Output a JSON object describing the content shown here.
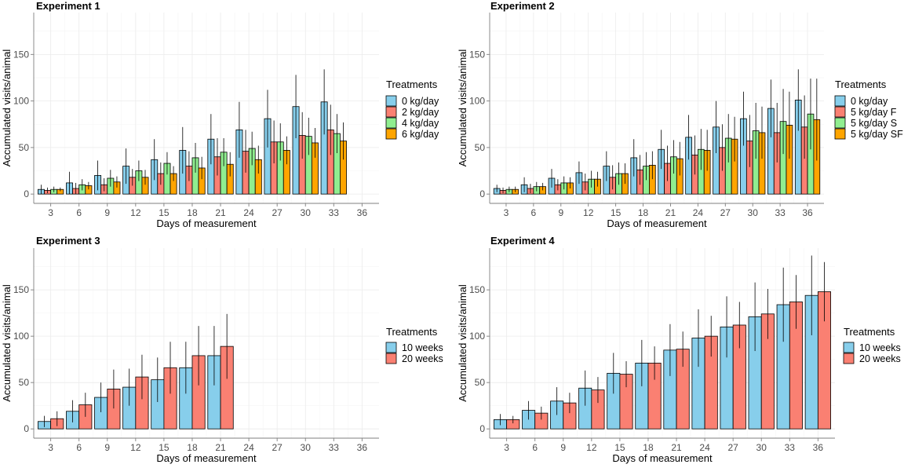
{
  "colors": {
    "0 kg/day": "#87CEEB",
    "2 kg/day": "#FA8072",
    "4 kg/day": "#90EE90",
    "6 kg/day": "#FFA500",
    "5 kg/day F": "#FA8072",
    "5 kg/day S": "#90EE90",
    "5 kg/day SF": "#FFA500",
    "10 weeks": "#87CEEB",
    "20 weeks": "#FA8072"
  },
  "chart_data": [
    {
      "type": "bar",
      "title": "Experiment 1",
      "xlabel": "Days of measurement",
      "ylabel": "Accumulated visits/animal",
      "ylim": [
        -10,
        195
      ],
      "yticks": [
        0,
        50,
        100,
        150
      ],
      "categories": [
        "3",
        "6",
        "9",
        "12",
        "15",
        "18",
        "21",
        "24",
        "27",
        "30",
        "33",
        "36"
      ],
      "legend_title": "Treatments",
      "series": [
        {
          "name": "0 kg/day",
          "values": [
            5,
            12,
            20,
            30,
            37,
            47,
            59,
            69,
            81,
            94,
            99,
            null
          ],
          "errors": [
            5,
            12,
            16,
            19,
            22,
            25,
            27,
            30,
            31,
            34,
            35,
            null
          ]
        },
        {
          "name": "2 kg/day",
          "values": [
            4,
            6,
            10,
            18,
            22,
            30,
            40,
            46,
            56,
            63,
            69,
            null
          ],
          "errors": [
            3,
            6,
            7,
            9,
            12,
            16,
            20,
            23,
            23,
            25,
            27,
            null
          ]
        },
        {
          "name": "4 kg/day",
          "values": [
            5,
            10,
            17,
            25,
            33,
            39,
            45,
            49,
            56,
            62,
            65,
            null
          ],
          "errors": [
            3,
            6,
            9,
            11,
            12,
            16,
            15,
            18,
            20,
            20,
            21,
            null
          ]
        },
        {
          "name": "6 kg/day",
          "values": [
            5,
            9,
            13,
            18,
            22,
            28,
            32,
            37,
            47,
            55,
            57,
            null
          ],
          "errors": [
            2,
            4,
            6,
            8,
            8,
            12,
            13,
            15,
            15,
            16,
            20,
            null
          ]
        }
      ]
    },
    {
      "type": "bar",
      "title": "Experiment 2",
      "xlabel": "Days of measurement",
      "ylabel": "Accumulated visits/animal",
      "ylim": [
        -10,
        195
      ],
      "yticks": [
        0,
        50,
        100,
        150
      ],
      "categories": [
        "3",
        "6",
        "9",
        "12",
        "15",
        "18",
        "21",
        "24",
        "27",
        "30",
        "33",
        "36"
      ],
      "legend_title": "Treatments",
      "series": [
        {
          "name": "0 kg/day",
          "values": [
            6,
            10,
            17,
            23,
            30,
            39,
            48,
            61,
            72,
            81,
            92,
            101
          ],
          "errors": [
            4,
            8,
            10,
            12,
            16,
            20,
            21,
            24,
            28,
            29,
            31,
            33
          ]
        },
        {
          "name": "5 kg/day F",
          "values": [
            4,
            6,
            10,
            13,
            18,
            26,
            33,
            42,
            50,
            57,
            66,
            72
          ],
          "errors": [
            3,
            5,
            6,
            9,
            13,
            16,
            19,
            21,
            25,
            28,
            32,
            34
          ]
        },
        {
          "name": "5 kg/day S",
          "values": [
            5,
            8,
            12,
            16,
            22,
            30,
            40,
            48,
            60,
            68,
            78,
            86
          ],
          "errors": [
            3,
            5,
            7,
            9,
            12,
            15,
            18,
            22,
            26,
            30,
            35,
            38
          ]
        },
        {
          "name": "5 kg/day SF",
          "values": [
            5,
            8,
            12,
            16,
            22,
            31,
            38,
            47,
            59,
            66,
            74,
            80
          ],
          "errors": [
            3,
            4,
            6,
            8,
            11,
            15,
            18,
            22,
            24,
            28,
            36,
            44
          ]
        }
      ]
    },
    {
      "type": "bar",
      "title": "Experiment 3",
      "xlabel": "Days of measurement",
      "ylabel": "Accumulated visits/animal",
      "ylim": [
        -10,
        195
      ],
      "yticks": [
        0,
        50,
        100,
        150
      ],
      "categories": [
        "3",
        "6",
        "9",
        "12",
        "15",
        "18",
        "21",
        "24",
        "27",
        "30",
        "33",
        "36"
      ],
      "legend_title": "Treatments",
      "series": [
        {
          "name": "10 weeks",
          "values": [
            8,
            19,
            34,
            45,
            53,
            66,
            79,
            null,
            null,
            null,
            null,
            null
          ],
          "errors": [
            6,
            12,
            16,
            20,
            24,
            28,
            32,
            null,
            null,
            null,
            null,
            null
          ]
        },
        {
          "name": "20 weeks",
          "values": [
            11,
            26,
            43,
            56,
            66,
            79,
            89,
            null,
            null,
            null,
            null,
            null
          ],
          "errors": [
            8,
            13,
            21,
            24,
            28,
            32,
            35,
            null,
            null,
            null,
            null,
            null
          ]
        }
      ]
    },
    {
      "type": "bar",
      "title": "Experiment 4",
      "xlabel": "Days of measurement",
      "ylabel": "Accumulated visits/animal",
      "ylim": [
        -10,
        195
      ],
      "yticks": [
        0,
        50,
        100,
        150
      ],
      "categories": [
        "3",
        "6",
        "9",
        "12",
        "15",
        "18",
        "21",
        "24",
        "27",
        "30",
        "33",
        "36"
      ],
      "legend_title": "Treatments",
      "series": [
        {
          "name": "10 weeks",
          "values": [
            10,
            20,
            30,
            44,
            60,
            71,
            85,
            98,
            110,
            121,
            134,
            144
          ],
          "errors": [
            6,
            10,
            15,
            19,
            22,
            25,
            28,
            31,
            33,
            37,
            40,
            43
          ]
        },
        {
          "name": "20 weeks",
          "values": [
            10,
            17,
            28,
            42,
            59,
            71,
            86,
            100,
            112,
            124,
            137,
            148
          ],
          "errors": [
            4,
            7,
            11,
            14,
            14,
            18,
            19,
            22,
            25,
            27,
            29,
            32
          ]
        }
      ]
    }
  ]
}
